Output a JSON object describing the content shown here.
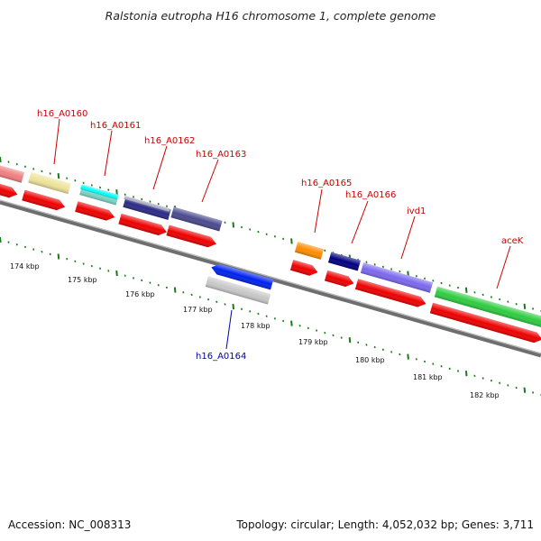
{
  "title": "Ralstonia eutropha H16 chromosome 1, complete genome",
  "footer": {
    "accession": "Accession: NC_008313",
    "summary": "Topology: circular; Length: 4,052,032 bp; Genes: 3,711"
  },
  "gene_labels": [
    {
      "text": "h16_A0160",
      "color": "#cc0000"
    },
    {
      "text": "h16_A0161",
      "color": "#cc0000"
    },
    {
      "text": "h16_A0162",
      "color": "#cc0000"
    },
    {
      "text": "h16_A0163",
      "color": "#cc0000"
    },
    {
      "text": "h16_A0164",
      "color": "#0000aa"
    },
    {
      "text": "h16_A0165",
      "color": "#cc0000"
    },
    {
      "text": "h16_A0166",
      "color": "#cc0000"
    },
    {
      "text": "ivd1",
      "color": "#cc0000"
    },
    {
      "text": "aceK",
      "color": "#cc0000"
    }
  ],
  "kbp_labels": [
    "174 kbp",
    "175 kbp",
    "176 kbp",
    "177 kbp",
    "178 kbp",
    "179 kbp",
    "180 kbp",
    "181 kbp",
    "182 kbp"
  ],
  "colors": {
    "cds_red": "#ee0000",
    "backbone": "#777777",
    "tick_green": "#1a7a1a",
    "gene_label_red": "#cc0000",
    "gene_label_blue": "#0000aa"
  }
}
